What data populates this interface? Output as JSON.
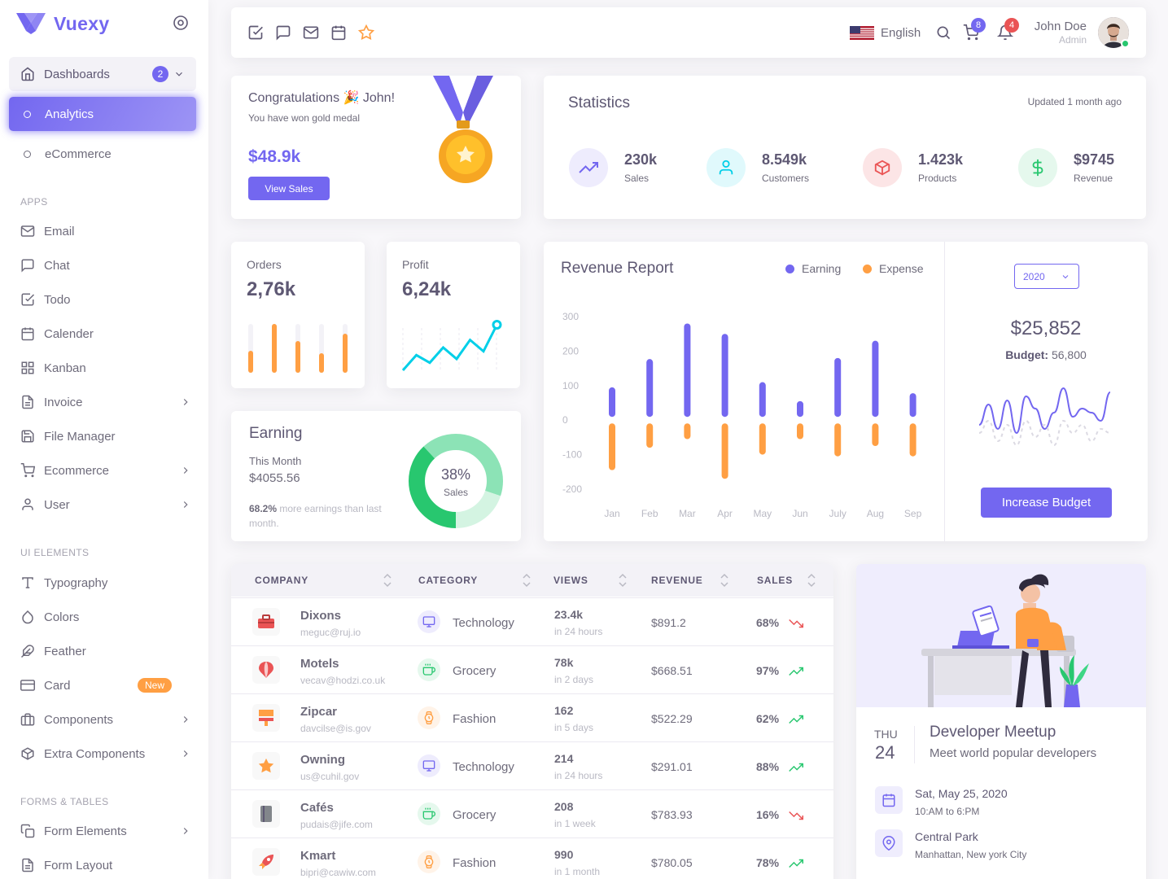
{
  "brand": {
    "name": "Vuexy"
  },
  "sidebar": {
    "dashboards": {
      "label": "Dashboards",
      "badge": "2"
    },
    "dash_items": [
      {
        "label": "Analytics"
      },
      {
        "label": "eCommerce"
      }
    ],
    "sections": [
      "APPS",
      "UI ELEMENTS",
      "FORMS & TABLES"
    ],
    "apps": [
      {
        "label": "Email",
        "icon": "mail-icon"
      },
      {
        "label": "Chat",
        "icon": "chat-icon"
      },
      {
        "label": "Todo",
        "icon": "check-square-icon"
      },
      {
        "label": "Calender",
        "icon": "calendar-icon"
      },
      {
        "label": "Kanban",
        "icon": "grid-icon"
      },
      {
        "label": "Invoice",
        "icon": "file-text-icon"
      },
      {
        "label": "File Manager",
        "icon": "save-icon"
      },
      {
        "label": "Ecommerce",
        "icon": "cart-icon"
      },
      {
        "label": "User",
        "icon": "user-icon"
      }
    ],
    "ui": [
      {
        "label": "Typography",
        "icon": "type-icon"
      },
      {
        "label": "Colors",
        "icon": "droplet-icon"
      },
      {
        "label": "Feather",
        "icon": "feather-icon"
      },
      {
        "label": "Card",
        "icon": "credit-card-icon",
        "badge": "New"
      },
      {
        "label": "Components",
        "icon": "briefcase-icon"
      },
      {
        "label": "Extra Components",
        "icon": "box-icon"
      }
    ],
    "forms": [
      {
        "label": "Form Elements",
        "icon": "copy-icon"
      },
      {
        "label": "Form Layout",
        "icon": "file-text-icon"
      }
    ]
  },
  "navbar": {
    "language": "English",
    "cart_count": "8",
    "notif_count": "4",
    "user_name": "John Doe",
    "user_role": "Admin"
  },
  "congrats": {
    "title": "Congratulations 🎉 John!",
    "subtitle": "You have won gold medal",
    "amount": "$48.9k",
    "button": "View Sales"
  },
  "statistics": {
    "title": "Statistics",
    "updated": "Updated 1 month ago",
    "items": [
      {
        "value": "230k",
        "label": "Sales",
        "icon": "trending-up-icon",
        "color": "#7367f0"
      },
      {
        "value": "8.549k",
        "label": "Customers",
        "icon": "user-icon",
        "color": "#00cfe8"
      },
      {
        "value": "1.423k",
        "label": "Products",
        "icon": "box-icon",
        "color": "#ea5455"
      },
      {
        "value": "$9745",
        "label": "Revenue",
        "icon": "dollar-icon",
        "color": "#28c76f"
      }
    ]
  },
  "orders": {
    "title": "Orders",
    "value": "2,76k"
  },
  "profit": {
    "title": "Profit",
    "value": "6,24k"
  },
  "earning": {
    "title": "Earning",
    "period": "This Month",
    "amount": "$4055.56",
    "note_pct": "68.2%",
    "note_text": " more earnings than last month.",
    "donut_pct": "38%",
    "donut_label": "Sales"
  },
  "revenue": {
    "title": "Revenue Report",
    "legend": [
      "Earning",
      "Expense"
    ],
    "year": "2020",
    "budget_value": "$25,852",
    "budget_label": "Budget:",
    "budget_amount": " 56,800",
    "button": "Increase Budget"
  },
  "chart_data": [
    {
      "type": "bar",
      "title": "Revenue Report",
      "categories": [
        "Jan",
        "Feb",
        "Mar",
        "Apr",
        "May",
        "Jun",
        "July",
        "Aug",
        "Sep"
      ],
      "series": [
        {
          "name": "Earning",
          "color": "#7367f0",
          "values": [
            95,
            177,
            280,
            250,
            110,
            55,
            180,
            230,
            78
          ]
        },
        {
          "name": "Expense",
          "color": "#ff9f43",
          "values": [
            -145,
            -80,
            -55,
            -170,
            -100,
            -55,
            -105,
            -75,
            -105
          ]
        }
      ],
      "yticks": [
        300,
        200,
        100,
        0,
        -100,
        -200
      ],
      "ylim": [
        -200,
        300
      ]
    },
    {
      "type": "bar",
      "title": "Orders",
      "values": [
        45,
        100,
        65,
        40,
        80
      ],
      "color": "#ff9f43"
    },
    {
      "type": "line",
      "title": "Profit",
      "values": [
        0,
        20,
        10,
        30,
        15,
        40,
        25,
        60
      ],
      "color": "#00cfe8"
    },
    {
      "type": "pie",
      "title": "Earning",
      "values": [
        38,
        42,
        20
      ],
      "colors": [
        "#28c76f",
        "#8ce3b6",
        "#d4f4e2"
      ]
    },
    {
      "type": "line",
      "title": "Budget",
      "series": [
        {
          "values": [
            60,
            35,
            65,
            30,
            70,
            25,
            40,
            65,
            45,
            15,
            50,
            40,
            45,
            55,
            20
          ]
        },
        {
          "values": [
            70,
            55,
            80,
            60,
            85,
            55,
            75,
            60,
            85,
            55,
            70,
            60,
            80,
            65,
            70
          ]
        }
      ]
    }
  ],
  "table": {
    "headers": [
      "COMPANY",
      "CATEGORY",
      "VIEWS",
      "REVENUE",
      "SALES"
    ],
    "rows": [
      {
        "name": "Dixons",
        "email": "meguc@ruj.io",
        "category": "Technology",
        "views": "23.4k",
        "time": "in 24 hours",
        "revenue": "$891.2",
        "sales": "68%",
        "trend": "down",
        "logo_color": "#ea5455"
      },
      {
        "name": "Motels",
        "email": "vecav@hodzi.co.uk",
        "category": "Grocery",
        "views": "78k",
        "time": "in 2 days",
        "revenue": "$668.51",
        "sales": "97%",
        "trend": "up",
        "logo_color": "#ea5455"
      },
      {
        "name": "Zipcar",
        "email": "davcilse@is.gov",
        "category": "Fashion",
        "views": "162",
        "time": "in 5 days",
        "revenue": "$522.29",
        "sales": "62%",
        "trend": "up",
        "logo_color": "#ff9f43"
      },
      {
        "name": "Owning",
        "email": "us@cuhil.gov",
        "category": "Technology",
        "views": "214",
        "time": "in 24 hours",
        "revenue": "$291.01",
        "sales": "88%",
        "trend": "up",
        "logo_color": "#ff9f43"
      },
      {
        "name": "Cafés",
        "email": "pudais@jife.com",
        "category": "Grocery",
        "views": "208",
        "time": "in 1 week",
        "revenue": "$783.93",
        "sales": "16%",
        "trend": "down",
        "logo_color": "#82868b"
      },
      {
        "name": "Kmart",
        "email": "bipri@cawiw.com",
        "category": "Fashion",
        "views": "990",
        "time": "in 1 month",
        "revenue": "$780.05",
        "sales": "78%",
        "trend": "up",
        "logo_color": "#ea5455"
      }
    ]
  },
  "meetup": {
    "day": "THU",
    "date": "24",
    "title": "Developer Meetup",
    "subtitle": "Meet world popular developers",
    "when": "Sat, May 25, 2020",
    "time": "10:AM to 6:PM",
    "place": "Central Park",
    "address": "Manhattan, New york City"
  }
}
